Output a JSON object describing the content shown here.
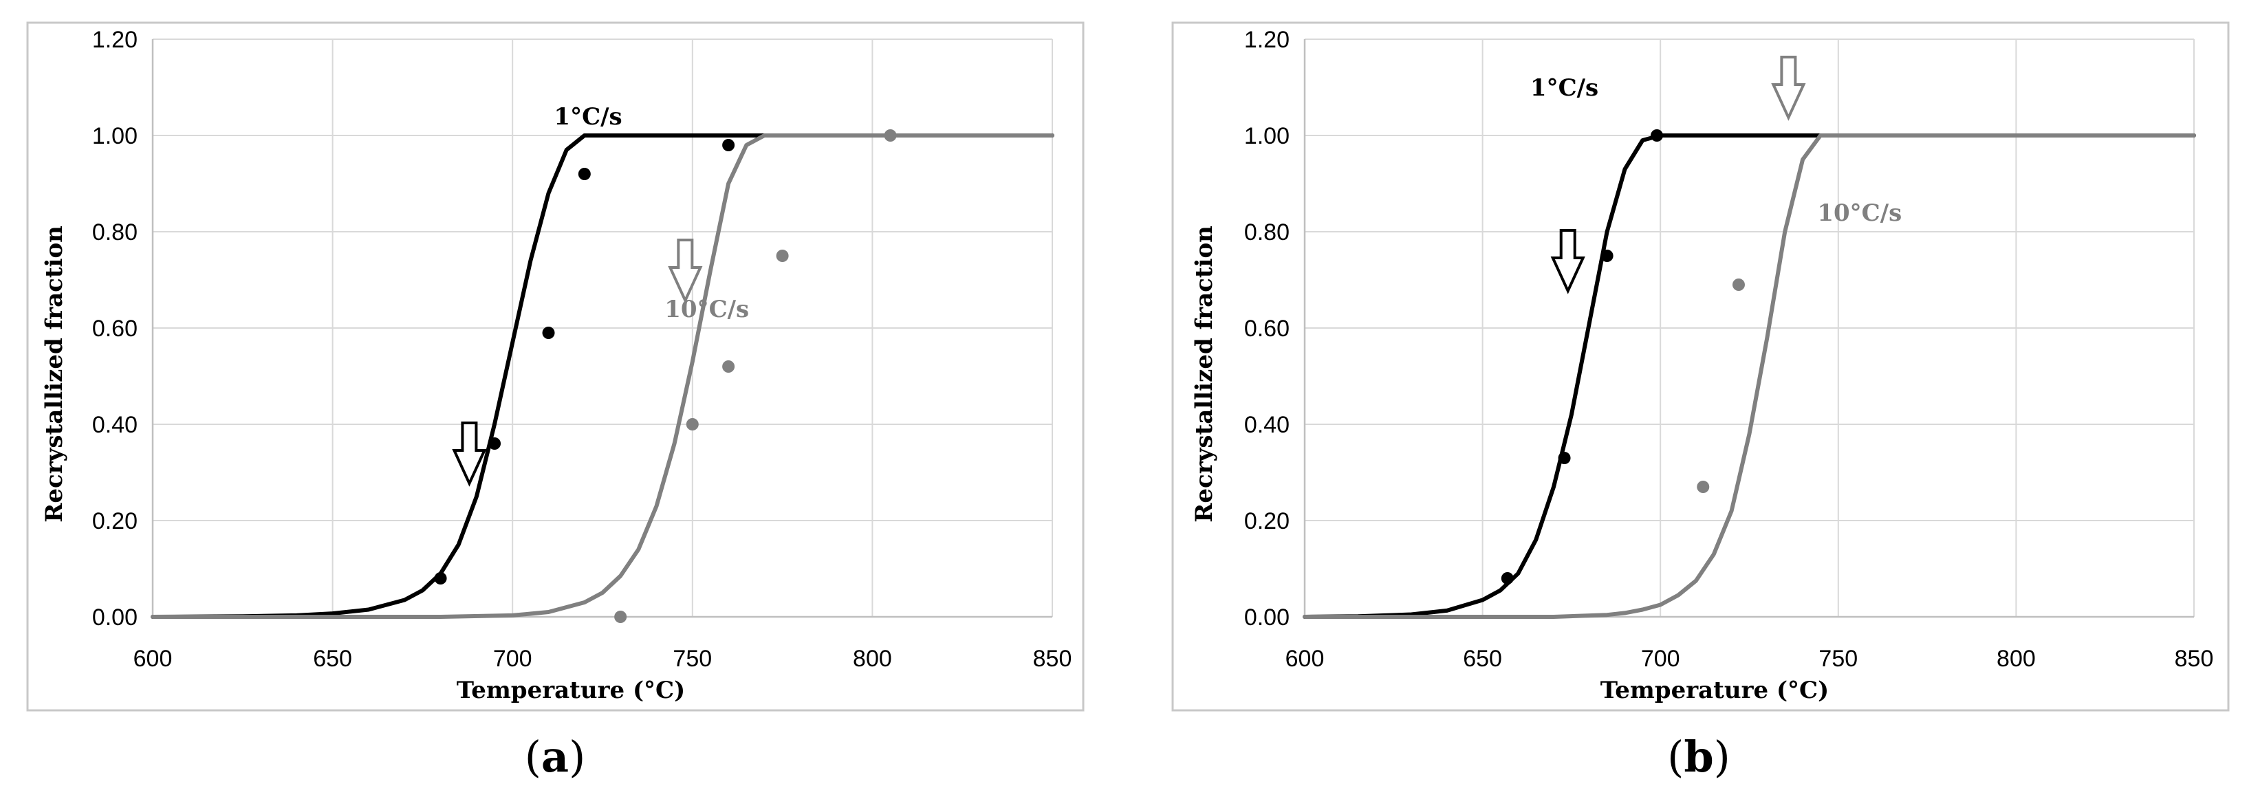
{
  "chart_data": [
    {
      "type": "line",
      "panel_label": "a",
      "xlabel": "Temperature (°C)",
      "ylabel": "Recrystallized fraction",
      "xlim": [
        600,
        850
      ],
      "ylim": [
        0,
        1.2
      ],
      "xticks": [
        600,
        650,
        700,
        750,
        800,
        850
      ],
      "xtick_labels": [
        "600",
        "650",
        "700",
        "750",
        "800",
        "850"
      ],
      "yticks": [
        0,
        0.2,
        0.4,
        0.6,
        0.8,
        1.0,
        1.2
      ],
      "ytick_labels": [
        "0.00",
        "0.20",
        "0.40",
        "0.60",
        "0.80",
        "1.00",
        "1.20"
      ],
      "grid": true,
      "series": [
        {
          "name": "1°C/s",
          "color": "#000000",
          "line_x": [
            600,
            625,
            640,
            650,
            660,
            670,
            675,
            680,
            685,
            690,
            695,
            700,
            705,
            710,
            715,
            720,
            723,
            850
          ],
          "line_y": [
            0,
            0.001,
            0.003,
            0.007,
            0.015,
            0.035,
            0.055,
            0.09,
            0.15,
            0.25,
            0.4,
            0.57,
            0.74,
            0.88,
            0.97,
            1.0,
            1.0,
            1.0
          ],
          "points_x": [
            680,
            695,
            710,
            720,
            760
          ],
          "points_y": [
            0.08,
            0.36,
            0.59,
            0.92,
            0.98
          ],
          "label_at": [
            721,
            1.04
          ],
          "arrow_at": [
            688,
            0.34
          ]
        },
        {
          "name": "10°C/s",
          "color": "#808080",
          "line_x": [
            600,
            680,
            700,
            710,
            715,
            720,
            725,
            730,
            735,
            740,
            745,
            750,
            755,
            760,
            765,
            770,
            850
          ],
          "line_y": [
            0,
            0.0,
            0.003,
            0.01,
            0.02,
            0.03,
            0.05,
            0.085,
            0.14,
            0.23,
            0.36,
            0.53,
            0.72,
            0.9,
            0.98,
            1.0,
            1.0
          ],
          "points_x": [
            730,
            750,
            760,
            775,
            805
          ],
          "points_y": [
            0.0,
            0.4,
            0.52,
            0.75,
            1.0
          ],
          "label_at": [
            754,
            0.64
          ],
          "arrow_at": [
            748,
            0.72
          ]
        }
      ]
    },
    {
      "type": "line",
      "panel_label": "b",
      "xlabel": "Temperature (°C)",
      "ylabel": "Recrystallized fraction",
      "xlim": [
        600,
        850
      ],
      "ylim": [
        0,
        1.2
      ],
      "xticks": [
        600,
        650,
        700,
        750,
        800,
        850
      ],
      "xtick_labels": [
        "600",
        "650",
        "700",
        "750",
        "800",
        "850"
      ],
      "yticks": [
        0,
        0.2,
        0.4,
        0.6,
        0.8,
        1.0,
        1.2
      ],
      "ytick_labels": [
        "0.00",
        "0.20",
        "0.40",
        "0.60",
        "0.80",
        "1.00",
        "1.20"
      ],
      "grid": true,
      "series": [
        {
          "name": "1°C/s",
          "color": "#000000",
          "line_x": [
            600,
            615,
            630,
            640,
            650,
            655,
            660,
            665,
            670,
            675,
            680,
            685,
            690,
            695,
            700,
            850
          ],
          "line_y": [
            0,
            0.001,
            0.005,
            0.013,
            0.035,
            0.055,
            0.09,
            0.16,
            0.27,
            0.42,
            0.61,
            0.8,
            0.93,
            0.99,
            1.0,
            1.0
          ],
          "points_x": [
            657,
            673,
            685,
            699
          ],
          "points_y": [
            0.08,
            0.33,
            0.75,
            1.0
          ],
          "label_at": [
            673,
            1.1
          ],
          "arrow_at": [
            674,
            0.74
          ]
        },
        {
          "name": "10°C/s",
          "color": "#808080",
          "line_x": [
            600,
            670,
            685,
            690,
            695,
            700,
            705,
            710,
            715,
            720,
            725,
            730,
            735,
            740,
            745,
            850
          ],
          "line_y": [
            0,
            0.0,
            0.004,
            0.008,
            0.015,
            0.025,
            0.045,
            0.075,
            0.13,
            0.22,
            0.38,
            0.58,
            0.8,
            0.95,
            1.0,
            1.0
          ],
          "points_x": [
            712,
            722
          ],
          "points_y": [
            0.27,
            0.69
          ],
          "label_at": [
            756,
            0.84
          ],
          "arrow_at": [
            736,
            1.1
          ]
        }
      ]
    }
  ]
}
